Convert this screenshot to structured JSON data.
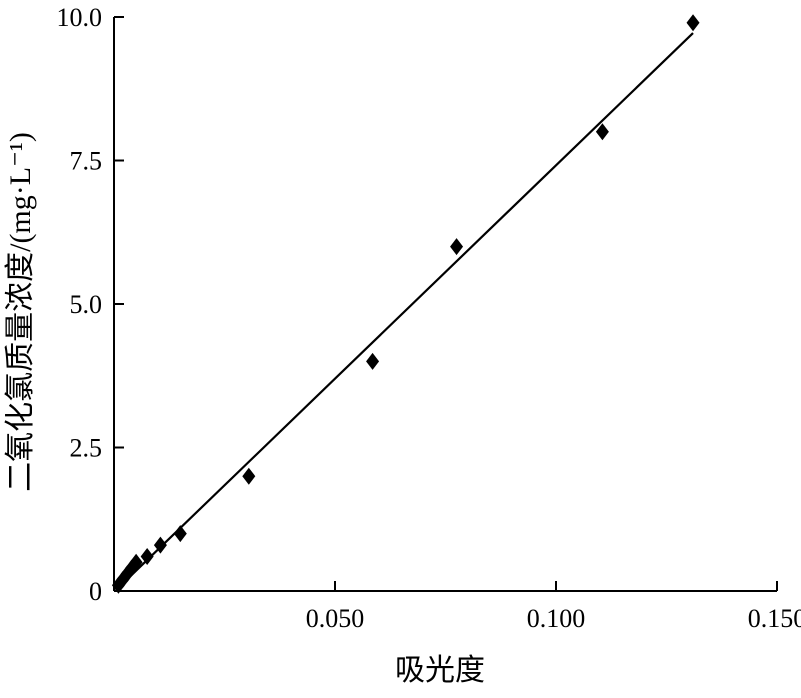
{
  "chart_data": {
    "type": "scatter",
    "title": "",
    "xlabel": "吸光度",
    "ylabel": "二氧化氯质量浓度/(mg·L⁻¹)",
    "xlim": [
      0,
      0.15
    ],
    "ylim": [
      0,
      10.0
    ],
    "x_ticks": [
      0.05,
      0.1,
      0.15
    ],
    "x_tick_labels": [
      "0.050",
      "0.100",
      "0.150"
    ],
    "y_ticks": [
      0,
      2.5,
      5.0,
      7.5,
      10.0
    ],
    "y_tick_labels": [
      "0",
      "2.5",
      "5.0",
      "7.5",
      "10.0"
    ],
    "grid": false,
    "legend": "none",
    "marker": "diamond",
    "points": [
      {
        "x": 0.001,
        "y": 0.1
      },
      {
        "x": 0.002,
        "y": 0.2
      },
      {
        "x": 0.003,
        "y": 0.3
      },
      {
        "x": 0.004,
        "y": 0.4
      },
      {
        "x": 0.005,
        "y": 0.5
      },
      {
        "x": 0.0075,
        "y": 0.6
      },
      {
        "x": 0.0105,
        "y": 0.8
      },
      {
        "x": 0.015,
        "y": 1.0
      },
      {
        "x": 0.0305,
        "y": 2.0
      },
      {
        "x": 0.0585,
        "y": 4.0
      },
      {
        "x": 0.0775,
        "y": 6.0
      },
      {
        "x": 0.1105,
        "y": 8.0
      },
      {
        "x": 0.131,
        "y": 9.9
      }
    ],
    "fit_line": {
      "x": [
        0.0005,
        0.131
      ],
      "y": [
        0.02,
        9.72
      ]
    }
  }
}
